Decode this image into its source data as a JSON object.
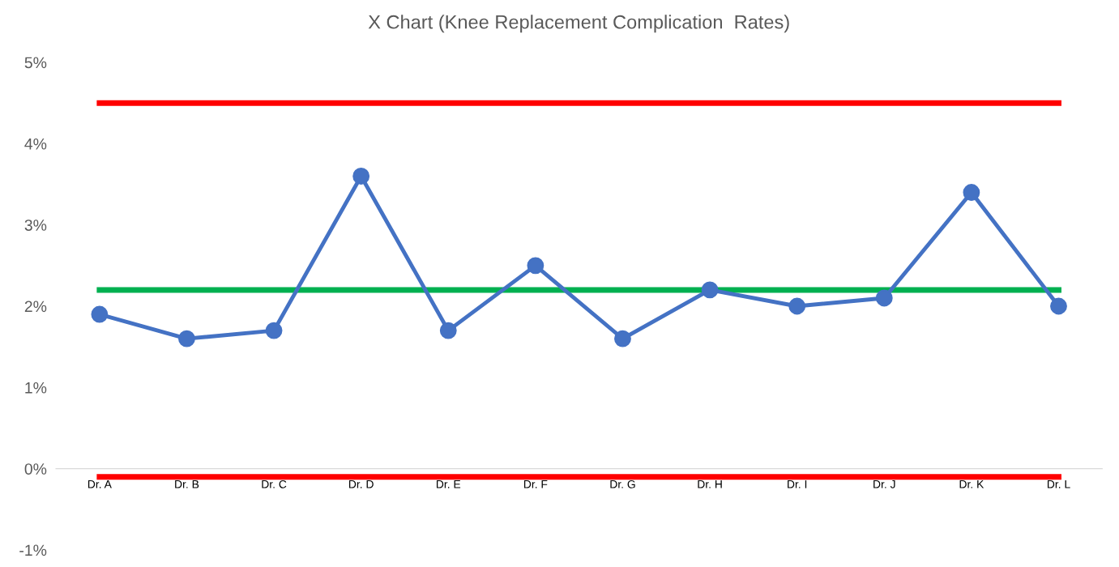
{
  "chart_data": {
    "type": "line",
    "title": "X Chart (Knee Replacement Complication  Rates)",
    "categories": [
      "Dr. A",
      "Dr. B",
      "Dr. C",
      "Dr. D",
      "Dr. E",
      "Dr. F",
      "Dr. G",
      "Dr. H",
      "Dr. I",
      "Dr. J",
      "Dr. K",
      "Dr. L"
    ],
    "series": [
      {
        "color": "#4472c4",
        "values": [
          1.9,
          1.6,
          1.7,
          3.6,
          1.7,
          2.5,
          1.6,
          2.2,
          2.0,
          2.1,
          3.4,
          2.0
        ]
      }
    ],
    "marker": "circle",
    "line_style": "solid",
    "ylim": [
      -1,
      5
    ],
    "yticks": [
      {
        "value": -1,
        "label": "-1%"
      },
      {
        "value": 0,
        "label": "0%"
      },
      {
        "value": 1,
        "label": "1%"
      },
      {
        "value": 2,
        "label": "2%"
      },
      {
        "value": 3,
        "label": "3%"
      },
      {
        "value": 4,
        "label": "4%"
      },
      {
        "value": 5,
        "label": "5%"
      }
    ],
    "ref_lines": [
      {
        "axis": "y",
        "value": 4.5,
        "color": "#ff0000"
      },
      {
        "axis": "y",
        "value": 2.2,
        "color": "#00b050"
      },
      {
        "axis": "y",
        "value": -0.1,
        "color": "#ff0000"
      }
    ],
    "grid": false,
    "legend": false
  }
}
